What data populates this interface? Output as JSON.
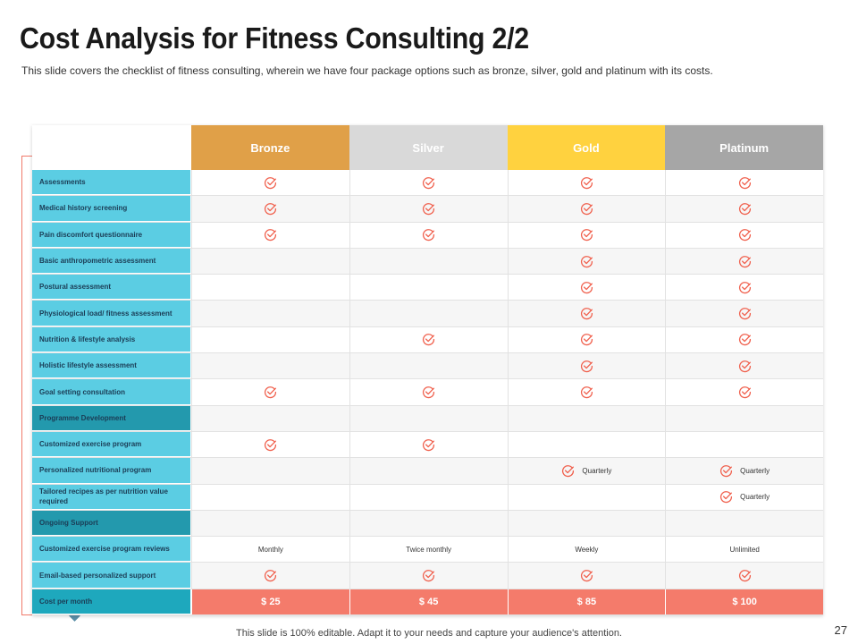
{
  "title": "Cost Analysis for Fitness Consulting 2/2",
  "subtitle": "This slide covers the checklist of fitness consulting, wherein we have four package options such as bronze, silver, gold and platinum with its costs.",
  "colors": {
    "bronze": "#e0a048",
    "silver": "#d9d9d9",
    "gold": "#ffd23f",
    "platinum": "#a6a6a6",
    "check": "#f0604d",
    "accent": "#f47b6b"
  },
  "packages": [
    "Bronze",
    "Silver",
    "Gold",
    "Platinum"
  ],
  "rows": [
    {
      "label": "Assessments",
      "section": false,
      "cells": [
        "check",
        "check",
        "check",
        "check"
      ]
    },
    {
      "label": "Medical history screening",
      "section": false,
      "cells": [
        "check",
        "check",
        "check",
        "check"
      ]
    },
    {
      "label": "Pain discomfort questionnaire",
      "section": false,
      "cells": [
        "check",
        "check",
        "check",
        "check"
      ]
    },
    {
      "label": "Basic anthropometric assessment",
      "section": false,
      "cells": [
        "",
        "",
        "check",
        "check"
      ]
    },
    {
      "label": "Postural assessment",
      "section": false,
      "cells": [
        "",
        "",
        "check",
        "check"
      ]
    },
    {
      "label": "Physiological load/ fitness assessment",
      "section": false,
      "cells": [
        "",
        "",
        "check",
        "check"
      ]
    },
    {
      "label": "Nutrition & lifestyle analysis",
      "section": false,
      "cells": [
        "",
        "check",
        "check",
        "check"
      ]
    },
    {
      "label": "Holistic lifestyle assessment",
      "section": false,
      "cells": [
        "",
        "",
        "check",
        "check"
      ]
    },
    {
      "label": "Goal setting consultation",
      "section": false,
      "cells": [
        "check",
        "check",
        "check",
        "check"
      ]
    },
    {
      "label": "Programme Development",
      "section": true,
      "cells": [
        "",
        "",
        "",
        ""
      ]
    },
    {
      "label": "Customized exercise program",
      "section": false,
      "cells": [
        "check",
        "check",
        "",
        ""
      ]
    },
    {
      "label": "Personalized nutritional program",
      "section": false,
      "cells": [
        "",
        "",
        "check:Quarterly",
        "check:Quarterly"
      ]
    },
    {
      "label": "Tailored recipes as per nutrition value required",
      "section": false,
      "cells": [
        "",
        "",
        "",
        "check:Quarterly"
      ]
    },
    {
      "label": "Ongoing Support",
      "section": true,
      "cells": [
        "",
        "",
        "",
        ""
      ]
    },
    {
      "label": "Customized exercise program reviews",
      "section": false,
      "cells": [
        "Monthly",
        "Twice monthly",
        "Weekly",
        "Unlimited"
      ]
    },
    {
      "label": "Email-based personalized support",
      "section": false,
      "cells": [
        "check",
        "check",
        "check",
        "check"
      ]
    }
  ],
  "cost": {
    "label": "Cost per month",
    "values": [
      "$ 25",
      "$ 45",
      "$ 85",
      "$ 100"
    ]
  },
  "footer": "This slide is 100% editable. Adapt it to your needs and capture your audience's attention.",
  "page_number": "27"
}
